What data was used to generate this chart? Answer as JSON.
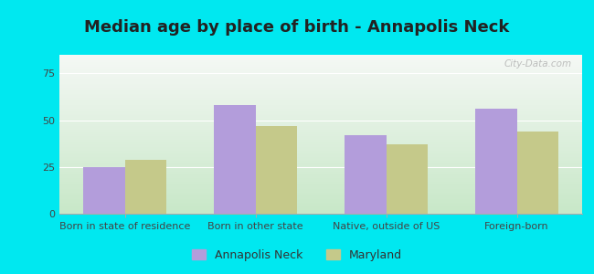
{
  "title": "Median age by place of birth - Annapolis Neck",
  "categories": [
    "Born in state of residence",
    "Born in other state",
    "Native, outside of US",
    "Foreign-born"
  ],
  "annapolis_neck": [
    25,
    58,
    42,
    56
  ],
  "maryland": [
    29,
    47,
    37,
    44
  ],
  "annapolis_color": "#b39ddb",
  "maryland_color": "#c5c98a",
  "ylim": [
    0,
    85
  ],
  "yticks": [
    0,
    25,
    50,
    75
  ],
  "background_outer": "#00e8f0",
  "background_inner_bottom": "#c8e8c8",
  "background_inner_top": "#f5f8f5",
  "bar_width": 0.32,
  "legend_annapolis": "Annapolis Neck",
  "legend_maryland": "Maryland",
  "title_fontsize": 13,
  "tick_fontsize": 8,
  "legend_fontsize": 9,
  "title_color": "#222222",
  "watermark": "City-Data.com"
}
